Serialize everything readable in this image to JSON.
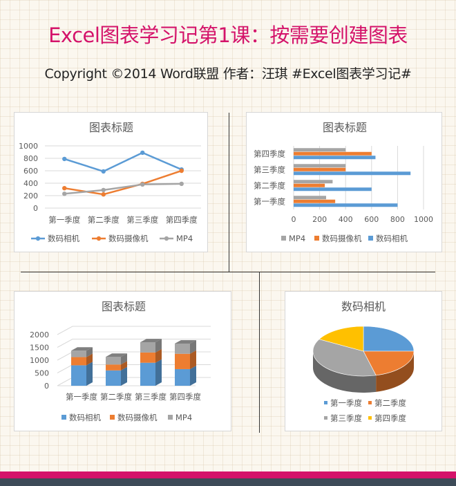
{
  "page": {
    "title": "Excel图表学习记第1课：按需要创建图表",
    "subtitle": "Copyright ©2014 Word联盟    作者：汪琪   #Excel图表学习记#"
  },
  "colors": {
    "title": "#d4136a",
    "series1": "#5b9bd5",
    "series2": "#ed7d31",
    "series3": "#a5a5a5",
    "series4": "#ffc000",
    "footer_pink": "#d4136a",
    "footer_dark": "#3d4b58"
  },
  "chart_data": [
    {
      "id": "line",
      "type": "line",
      "title": "图表标题",
      "categories": [
        "第一季度",
        "第二季度",
        "第三季度",
        "第四季度"
      ],
      "series": [
        {
          "name": "数码相机",
          "values": [
            790,
            590,
            890,
            620
          ]
        },
        {
          "name": "数码摄像机",
          "values": [
            320,
            220,
            390,
            600
          ]
        },
        {
          "name": "MP4",
          "values": [
            230,
            290,
            380,
            390
          ]
        }
      ],
      "yticks": [
        "0",
        "200",
        "400",
        "600",
        "800",
        "1000"
      ],
      "ylim": [
        0,
        1000
      ],
      "legend": "bottom",
      "grid": true
    },
    {
      "id": "hbar",
      "type": "bar",
      "orientation": "horizontal",
      "title": "图表标题",
      "categories": [
        "第一季度",
        "第二季度",
        "第三季度",
        "第四季度"
      ],
      "series": [
        {
          "name": "MP4",
          "values": [
            250,
            300,
            400,
            400
          ]
        },
        {
          "name": "数码摄像机",
          "values": [
            320,
            240,
            400,
            600
          ]
        },
        {
          "name": "数码相机",
          "values": [
            800,
            600,
            900,
            630
          ]
        }
      ],
      "xticks": [
        "0",
        "200",
        "400",
        "600",
        "800",
        "1000"
      ],
      "xlim": [
        0,
        1000
      ],
      "legend": "bottom",
      "grid": true
    },
    {
      "id": "stacked",
      "type": "bar",
      "subtype": "stacked-3d-column",
      "title": "图表标题",
      "categories": [
        "第一季度",
        "第二季度",
        "第三季度",
        "第四季度"
      ],
      "series": [
        {
          "name": "数码相机",
          "values": [
            800,
            600,
            900,
            650
          ]
        },
        {
          "name": "数码摄像机",
          "values": [
            320,
            230,
            400,
            600
          ]
        },
        {
          "name": "MP4",
          "values": [
            250,
            300,
            400,
            400
          ]
        }
      ],
      "yticks": [
        "0",
        "500",
        "1000",
        "1500",
        "2000"
      ],
      "ylim": [
        0,
        2000
      ],
      "legend": "bottom",
      "grid": true
    },
    {
      "id": "pie",
      "type": "pie",
      "subtype": "3d-pie",
      "title": "数码相机",
      "categories": [
        "第一季度",
        "第二季度",
        "第三季度",
        "第四季度"
      ],
      "values": [
        25,
        21,
        37,
        17
      ],
      "legend": "bottom"
    }
  ]
}
